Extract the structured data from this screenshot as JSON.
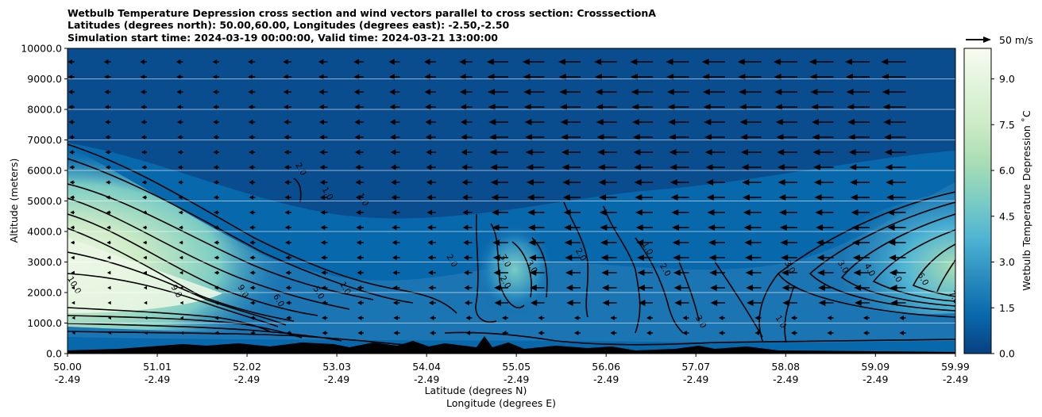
{
  "chart_data": {
    "type": "heatmap",
    "title_lines": [
      "Wetbulb Temperature Depression cross section and wind vectors parallel to cross section: CrosssectionA",
      "Latitudes (degrees north): 50.00,60.00, Longitudes (degrees east): -2.50,-2.50",
      "Simulation start time: 2024-03-19 00:00:00, Valid time: 2024-03-21 13:00:00"
    ],
    "xlabel_lat": "Latitude (degrees N)",
    "xlabel_lon": "Longitude (degrees E)",
    "ylabel": "Altitude (meters)",
    "x_ticks": [
      {
        "lat": "50.00",
        "lon": "-2.49"
      },
      {
        "lat": "51.01",
        "lon": "-2.49"
      },
      {
        "lat": "52.02",
        "lon": "-2.49"
      },
      {
        "lat": "53.03",
        "lon": "-2.49"
      },
      {
        "lat": "54.04",
        "lon": "-2.49"
      },
      {
        "lat": "55.05",
        "lon": "-2.49"
      },
      {
        "lat": "56.06",
        "lon": "-2.49"
      },
      {
        "lat": "57.07",
        "lon": "-2.49"
      },
      {
        "lat": "58.08",
        "lon": "-2.49"
      },
      {
        "lat": "59.09",
        "lon": "-2.49"
      },
      {
        "lat": "59.99",
        "lon": "-2.49"
      }
    ],
    "xlim": [
      50.0,
      59.99
    ],
    "ylim": [
      0,
      10000
    ],
    "y_ticks": [
      "0.0",
      "1000.0",
      "2000.0",
      "3000.0",
      "4000.0",
      "5000.0",
      "6000.0",
      "7000.0",
      "8000.0",
      "9000.0",
      "10000.0"
    ],
    "y_grid": true,
    "colorbar": {
      "label": "Wetbulb Temperature Depression $^\\circ$C",
      "label_display": "Wetbulb Temperature Depression ˚C",
      "ticks": [
        "0.0",
        "1.5",
        "3.0",
        "4.5",
        "6.0",
        "7.5",
        "9.0"
      ],
      "range": [
        0,
        10
      ],
      "colormap": "GnBu_r",
      "colors": [
        "#084081",
        "#0868ac",
        "#2b8cbe",
        "#4eb3d3",
        "#7bccc4",
        "#a8ddb5",
        "#ccebc5",
        "#e0f3db",
        "#f7fcf0"
      ]
    },
    "quiver_key": {
      "label": "50 m/s"
    },
    "contour_labels": [
      {
        "text": "2.0",
        "lat": 52.6,
        "alt": 6000
      },
      {
        "text": "1.0",
        "lat": 52.9,
        "alt": 5200
      },
      {
        "text": "1.0",
        "lat": 53.3,
        "alt": 5000
      },
      {
        "text": "10.0",
        "lat": 50.05,
        "alt": 2200
      },
      {
        "text": "9.0",
        "lat": 51.2,
        "alt": 2000
      },
      {
        "text": "9.0",
        "lat": 51.95,
        "alt": 2000
      },
      {
        "text": "6.0",
        "lat": 52.35,
        "alt": 1700
      },
      {
        "text": "5.0",
        "lat": 52.8,
        "alt": 1950
      },
      {
        "text": "1.0",
        "lat": 53.1,
        "alt": 2100
      },
      {
        "text": "2.0",
        "lat": 54.3,
        "alt": 3000
      },
      {
        "text": "2.0",
        "lat": 54.9,
        "alt": 2300
      },
      {
        "text": "3.0",
        "lat": 54.9,
        "alt": 3000
      },
      {
        "text": "3.0",
        "lat": 55.2,
        "alt": 2800
      },
      {
        "text": "2.0",
        "lat": 55.75,
        "alt": 3200
      },
      {
        "text": "1.0",
        "lat": 56.5,
        "alt": 3400
      },
      {
        "text": "2.0",
        "lat": 56.7,
        "alt": 2700
      },
      {
        "text": "3.0",
        "lat": 57.1,
        "alt": 1000
      },
      {
        "text": "3.0",
        "lat": 58.1,
        "alt": 2800
      },
      {
        "text": "3.0",
        "lat": 58.7,
        "alt": 2800
      },
      {
        "text": "4.0",
        "lat": 59.0,
        "alt": 2700
      },
      {
        "text": "5.0",
        "lat": 59.3,
        "alt": 2500
      },
      {
        "text": "6.0",
        "lat": 59.6,
        "alt": 2400
      },
      {
        "text": "7.0",
        "lat": 59.95,
        "alt": 1800
      },
      {
        "text": "1.0",
        "lat": 58.0,
        "alt": 1000
      }
    ]
  }
}
